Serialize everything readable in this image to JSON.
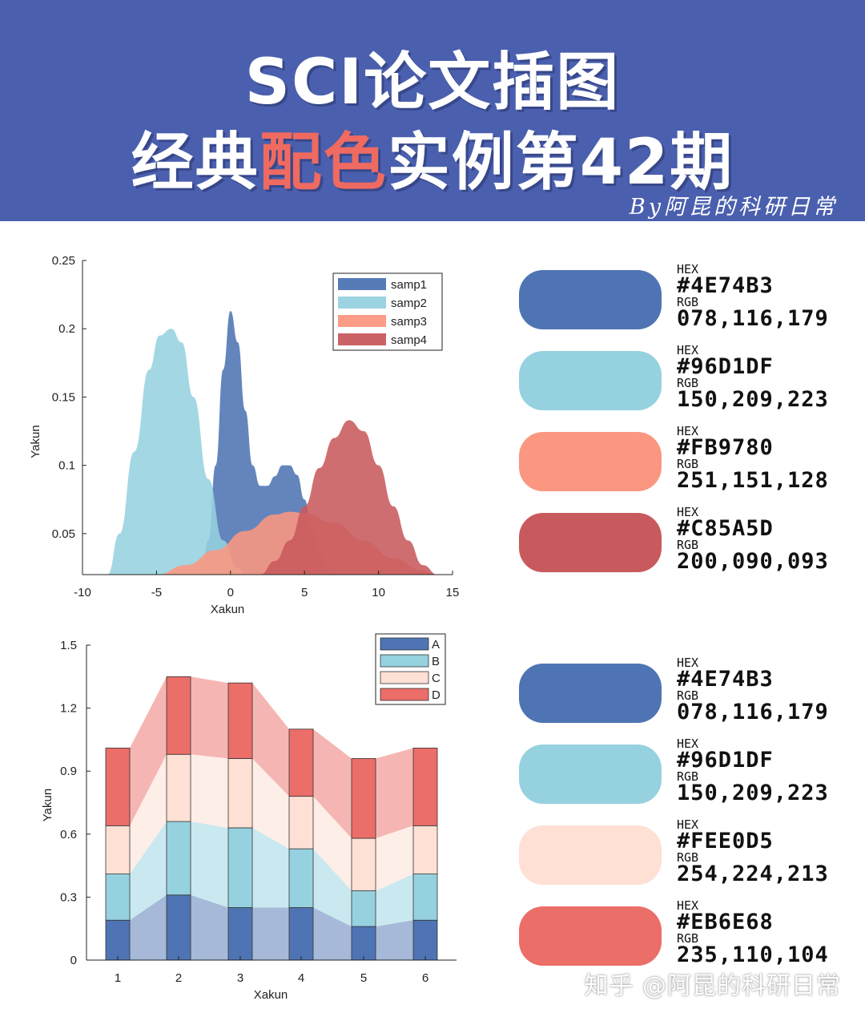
{
  "header": {
    "title_line1": "SCI论文插图",
    "title_line2_a": "经典",
    "title_line2_hl": "配色",
    "title_line2_b": "实例第42期",
    "byline": "By阿昆的科研日常"
  },
  "colors": {
    "banner": "#4a5fae",
    "title_highlight": "#ef6a60"
  },
  "palette_top": [
    {
      "hex_label": "HEX",
      "hex": "#4E74B3",
      "rgb_label": "RGB",
      "rgb": "078,116,179",
      "color": "#4E74B3"
    },
    {
      "hex_label": "HEX",
      "hex": "#96D1DF",
      "rgb_label": "RGB",
      "rgb": "150,209,223",
      "color": "#96D1DF"
    },
    {
      "hex_label": "HEX",
      "hex": "#FB9780",
      "rgb_label": "RGB",
      "rgb": "251,151,128",
      "color": "#FB9780"
    },
    {
      "hex_label": "HEX",
      "hex": "#C85A5D",
      "rgb_label": "RGB",
      "rgb": "200,090,093",
      "color": "#C85A5D"
    }
  ],
  "palette_bottom": [
    {
      "hex_label": "HEX",
      "hex": "#4E74B3",
      "rgb_label": "RGB",
      "rgb": "078,116,179",
      "color": "#4E74B3"
    },
    {
      "hex_label": "HEX",
      "hex": "#96D1DF",
      "rgb_label": "RGB",
      "rgb": "150,209,223",
      "color": "#96D1DF"
    },
    {
      "hex_label": "HEX",
      "hex": "#FEE0D5",
      "rgb_label": "RGB",
      "rgb": "254,224,213",
      "color": "#FEE0D5"
    },
    {
      "hex_label": "HEX",
      "hex": "#EB6E68",
      "rgb_label": "RGB",
      "rgb": "235,110,104",
      "color": "#EB6E68"
    }
  ],
  "watermark": "知乎 @阿昆的科研日常",
  "chart_data": [
    {
      "type": "area",
      "xlabel": "Xakun",
      "ylabel": "Yakun",
      "xlim": [
        -10,
        15
      ],
      "ylim": [
        0.02,
        0.25
      ],
      "xticks": [
        -10,
        -5,
        0,
        5,
        10,
        15
      ],
      "yticks": [
        0.05,
        0.1,
        0.15,
        0.2,
        0.25
      ],
      "ytick_labels": [
        "0.05",
        "0.1",
        "0.15",
        "0.2",
        "0.25"
      ],
      "legend_position": "top-right",
      "grid": false,
      "series": [
        {
          "name": "samp1",
          "color": "#4E74B3",
          "points": [
            [
              -2,
              0.02
            ],
            [
              -1.5,
              0.045
            ],
            [
              -1,
              0.1
            ],
            [
              -0.5,
              0.17
            ],
            [
              0,
              0.213
            ],
            [
              0.5,
              0.19
            ],
            [
              1,
              0.14
            ],
            [
              1.5,
              0.1
            ],
            [
              2,
              0.085
            ],
            [
              2.5,
              0.085
            ],
            [
              3,
              0.092
            ],
            [
              3.5,
              0.1
            ],
            [
              4,
              0.1
            ],
            [
              4.5,
              0.093
            ],
            [
              5,
              0.075
            ],
            [
              5.5,
              0.055
            ],
            [
              6,
              0.038
            ],
            [
              6.5,
              0.025
            ],
            [
              7,
              0.02
            ]
          ]
        },
        {
          "name": "samp2",
          "color": "#96D1DF",
          "points": [
            [
              -8.3,
              0.02
            ],
            [
              -7.5,
              0.05
            ],
            [
              -6.5,
              0.11
            ],
            [
              -5.5,
              0.17
            ],
            [
              -4.8,
              0.195
            ],
            [
              -4,
              0.2
            ],
            [
              -3.3,
              0.19
            ],
            [
              -2.5,
              0.15
            ],
            [
              -1.5,
              0.09
            ],
            [
              -0.5,
              0.045
            ],
            [
              0.5,
              0.025
            ],
            [
              1,
              0.02
            ]
          ]
        },
        {
          "name": "samp3",
          "color": "#FB9780",
          "points": [
            [
              -5,
              0.02
            ],
            [
              -3,
              0.027
            ],
            [
              -1,
              0.038
            ],
            [
              1,
              0.052
            ],
            [
              3,
              0.064
            ],
            [
              4,
              0.066
            ],
            [
              5,
              0.065
            ],
            [
              7,
              0.058
            ],
            [
              9,
              0.045
            ],
            [
              11,
              0.032
            ],
            [
              13,
              0.023
            ],
            [
              14,
              0.02
            ]
          ]
        },
        {
          "name": "samp4",
          "color": "#C85A5D",
          "points": [
            [
              2,
              0.02
            ],
            [
              3,
              0.03
            ],
            [
              4,
              0.045
            ],
            [
              5,
              0.07
            ],
            [
              6,
              0.098
            ],
            [
              7,
              0.12
            ],
            [
              8,
              0.133
            ],
            [
              9,
              0.125
            ],
            [
              10,
              0.1
            ],
            [
              11,
              0.07
            ],
            [
              12,
              0.045
            ],
            [
              13,
              0.027
            ],
            [
              14,
              0.02
            ]
          ]
        }
      ]
    },
    {
      "type": "bar",
      "stacked": true,
      "xlabel": "Xakun",
      "ylabel": "Yakun",
      "ylim": [
        0,
        1.5
      ],
      "yticks": [
        0,
        0.3,
        0.6,
        0.9,
        1.2,
        1.5
      ],
      "ytick_labels": [
        "0",
        "0.3",
        "0.6",
        "0.9",
        "1.2",
        "1.5"
      ],
      "categories": [
        "1",
        "2",
        "3",
        "4",
        "5",
        "6"
      ],
      "legend_position": "top-right",
      "grid": false,
      "series": [
        {
          "name": "A",
          "color": "#4E74B3",
          "values": [
            0.19,
            0.31,
            0.25,
            0.25,
            0.16,
            0.19
          ]
        },
        {
          "name": "B",
          "color": "#96D1DF",
          "values": [
            0.22,
            0.35,
            0.38,
            0.28,
            0.17,
            0.22
          ]
        },
        {
          "name": "C",
          "color": "#FEE0D5",
          "values": [
            0.23,
            0.32,
            0.33,
            0.25,
            0.25,
            0.23
          ]
        },
        {
          "name": "D",
          "color": "#EB6E68",
          "values": [
            0.37,
            0.37,
            0.36,
            0.32,
            0.38,
            0.37
          ]
        }
      ]
    }
  ]
}
